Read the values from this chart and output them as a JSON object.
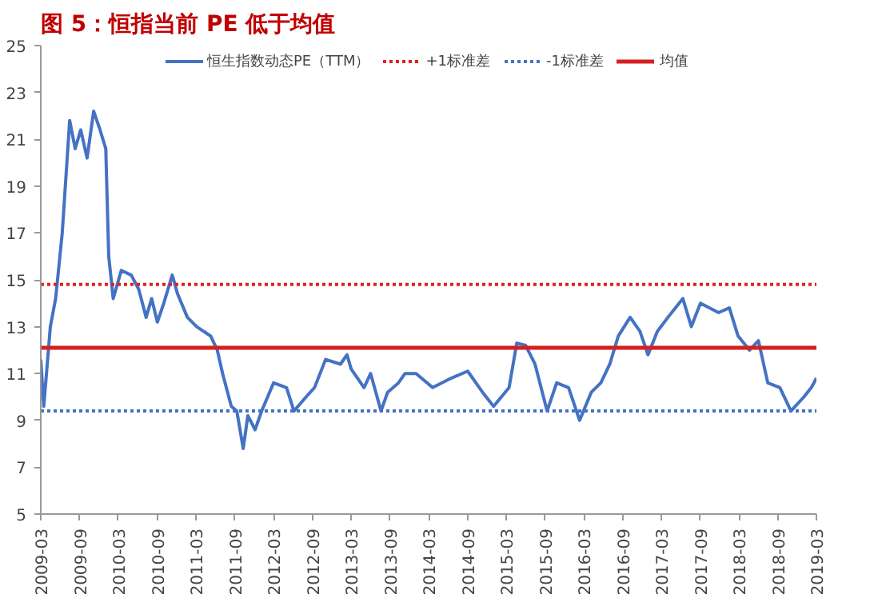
{
  "chart_data": {
    "type": "line",
    "title": "图 5：恒指当前 PE 低于均值",
    "xlim": [
      "2009-03",
      "2019-03"
    ],
    "xticks": [
      "2009-03",
      "2009-09",
      "2010-03",
      "2010-09",
      "2011-03",
      "2011-09",
      "2012-03",
      "2012-09",
      "2013-03",
      "2013-09",
      "2014-03",
      "2014-09",
      "2015-03",
      "2015-09",
      "2016-03",
      "2016-09",
      "2017-03",
      "2017-09",
      "2018-03",
      "2018-09",
      "2019-03"
    ],
    "ylim": [
      5,
      25
    ],
    "yticks": [
      5,
      7,
      9,
      11,
      13,
      15,
      17,
      19,
      21,
      23,
      25
    ],
    "legend": "top",
    "line_style": "solid",
    "series": [
      {
        "name": "恒生指数动态PE（TTM）",
        "color": "#4472c4",
        "x": [
          "2009-03-01",
          "2009-03-15",
          "2009-04-15",
          "2009-05-10",
          "2009-06-10",
          "2009-07-15",
          "2009-08-10",
          "2009-09-05",
          "2009-10-05",
          "2009-11-05",
          "2009-12-05",
          "2010-01-01",
          "2010-01-15",
          "2010-02-05",
          "2010-03-15",
          "2010-05-01",
          "2010-06-05",
          "2010-07-10",
          "2010-08-05",
          "2010-09-01",
          "2010-10-01",
          "2010-11-10",
          "2010-12-05",
          "2011-01-20",
          "2011-03-05",
          "2011-05-10",
          "2011-06-10",
          "2011-07-05",
          "2011-08-15",
          "2011-09-10",
          "2011-10-10",
          "2011-11-01",
          "2011-12-05",
          "2012-01-05",
          "2012-03-01",
          "2012-05-01",
          "2012-06-05",
          "2012-08-01",
          "2012-09-10",
          "2012-11-01",
          "2013-01-10",
          "2013-02-10",
          "2013-03-01",
          "2013-05-01",
          "2013-06-01",
          "2013-07-20",
          "2013-08-20",
          "2013-10-10",
          "2013-11-10",
          "2014-01-01",
          "2014-03-20",
          "2014-06-15",
          "2014-09-01",
          "2014-11-10",
          "2015-01-01",
          "2015-03-15",
          "2015-04-20",
          "2015-06-01",
          "2015-07-15",
          "2015-09-10",
          "2015-10-25",
          "2015-12-20",
          "2016-02-10",
          "2016-04-05",
          "2016-05-20",
          "2016-07-01",
          "2016-08-10",
          "2016-10-05",
          "2016-11-20",
          "2016-12-28",
          "2017-02-10",
          "2017-04-01",
          "2017-06-10",
          "2017-07-20",
          "2017-09-01",
          "2017-11-25",
          "2018-01-15",
          "2018-02-25",
          "2018-04-20",
          "2018-06-01",
          "2018-07-15",
          "2018-09-10",
          "2018-11-01",
          "2019-01-01",
          "2019-02-05",
          "2019-03-01"
        ],
        "values": [
          11.6,
          9.6,
          13.0,
          14.2,
          17.0,
          21.8,
          20.6,
          21.4,
          20.2,
          22.2,
          21.4,
          20.6,
          16.0,
          14.2,
          15.4,
          15.2,
          14.6,
          13.4,
          14.2,
          13.2,
          14.0,
          15.2,
          14.4,
          13.4,
          13.0,
          12.6,
          12.0,
          11.0,
          9.6,
          9.4,
          7.8,
          9.2,
          8.6,
          9.4,
          10.6,
          10.4,
          9.4,
          10.0,
          10.4,
          11.6,
          11.4,
          11.8,
          11.2,
          10.4,
          11.0,
          9.4,
          10.2,
          10.6,
          11.0,
          11.0,
          10.4,
          10.8,
          11.1,
          10.2,
          9.6,
          10.4,
          12.3,
          12.2,
          11.4,
          9.4,
          10.6,
          10.4,
          9.0,
          10.2,
          10.6,
          11.4,
          12.6,
          13.4,
          12.8,
          11.8,
          12.8,
          13.4,
          14.2,
          13.0,
          14.0,
          13.6,
          13.8,
          12.6,
          12.0,
          12.4,
          10.6,
          10.4,
          9.4,
          10.0,
          10.4,
          10.8
        ]
      }
    ],
    "ref_lines": [
      {
        "axis": "y",
        "value": 14.8,
        "label": "+1标准差",
        "color": "#e02020",
        "line_style": "dotted"
      },
      {
        "axis": "y",
        "value": 9.4,
        "label": "-1标准差",
        "color": "#4472c4",
        "line_style": "dotted"
      },
      {
        "axis": "y",
        "value": 12.1,
        "label": "均值",
        "color": "#d42020",
        "line_style": "solid"
      }
    ]
  }
}
